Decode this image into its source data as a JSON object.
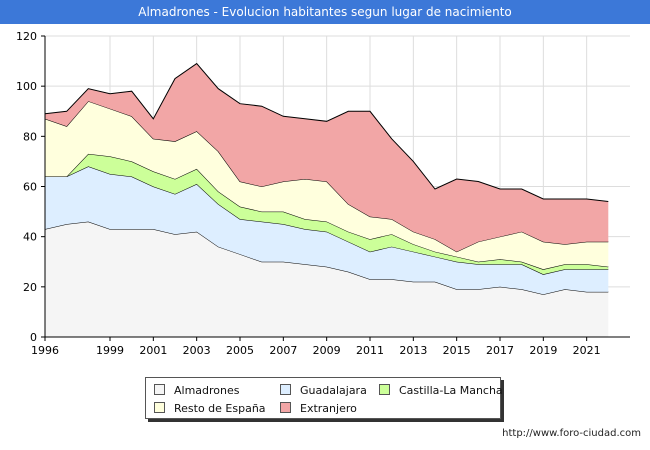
{
  "header": {
    "title": "Almadrones - Evolucion habitantes segun lugar de nacimiento"
  },
  "footer": {
    "source": "http://www.foro-ciudad.com"
  },
  "chart_data": {
    "type": "area",
    "stacked": true,
    "title": "Almadrones - Evolucion habitantes segun lugar de nacimiento",
    "xlabel": "",
    "ylabel": "",
    "x": [
      1996,
      1997,
      1998,
      1999,
      2000,
      2001,
      2002,
      2003,
      2004,
      2005,
      2006,
      2007,
      2008,
      2009,
      2010,
      2011,
      2012,
      2013,
      2014,
      2015,
      2016,
      2017,
      2018,
      2019,
      2020,
      2021,
      2022
    ],
    "x_ticks": [
      1996,
      1999,
      2001,
      2003,
      2005,
      2007,
      2009,
      2011,
      2013,
      2015,
      2017,
      2019,
      2021
    ],
    "xlim": [
      1996,
      2023
    ],
    "ylim": [
      0,
      120
    ],
    "y_ticks": [
      0,
      20,
      40,
      60,
      80,
      100,
      120
    ],
    "grid": true,
    "legend_position": "bottom",
    "series": [
      {
        "name": "Almadrones",
        "color": "#f5f5f5",
        "values": [
          43,
          45,
          46,
          43,
          43,
          43,
          41,
          42,
          36,
          33,
          30,
          30,
          29,
          28,
          26,
          23,
          23,
          22,
          22,
          19,
          19,
          20,
          19,
          17,
          19,
          18,
          18
        ]
      },
      {
        "name": "Guadalajara",
        "color": "#ddeeff",
        "values": [
          21,
          19,
          22,
          22,
          21,
          17,
          16,
          19,
          17,
          14,
          16,
          15,
          14,
          14,
          12,
          11,
          13,
          12,
          10,
          11,
          10,
          9,
          10,
          8,
          8,
          9,
          9
        ]
      },
      {
        "name": "Castilla-La Mancha",
        "color": "#ccff99",
        "values": [
          0,
          0,
          5,
          7,
          6,
          6,
          6,
          6,
          5,
          5,
          4,
          5,
          4,
          4,
          4,
          5,
          5,
          3,
          2,
          2,
          1,
          2,
          1,
          2,
          2,
          2,
          1
        ]
      },
      {
        "name": "Resto de España",
        "color": "#ffffdd",
        "values": [
          23,
          20,
          21,
          19,
          18,
          13,
          15,
          15,
          16,
          10,
          10,
          12,
          16,
          16,
          11,
          9,
          6,
          5,
          5,
          2,
          8,
          9,
          12,
          11,
          8,
          9,
          10
        ]
      },
      {
        "name": "Extranjero",
        "color": "#f2a6a6",
        "values": [
          2,
          6,
          5,
          6,
          10,
          8,
          25,
          27,
          25,
          31,
          32,
          26,
          24,
          24,
          37,
          42,
          32,
          28,
          20,
          29,
          24,
          19,
          17,
          17,
          18,
          17,
          16
        ]
      }
    ]
  }
}
